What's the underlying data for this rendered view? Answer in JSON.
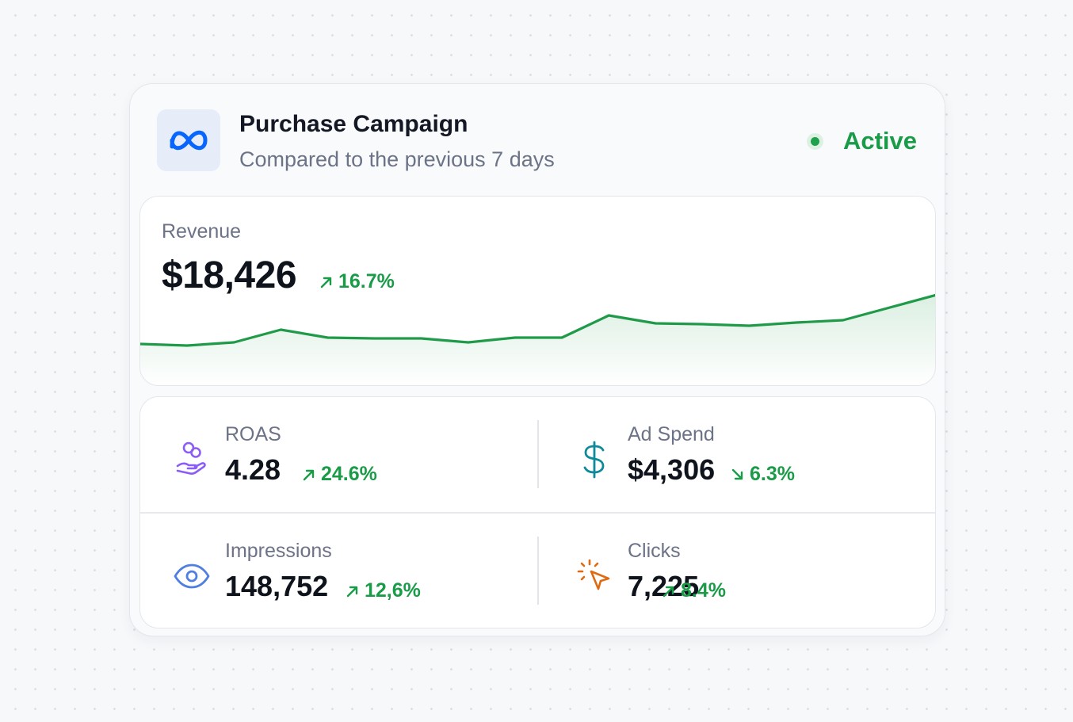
{
  "campaign": {
    "title": "Purchase Campaign",
    "subtitle": "Compared to the previous 7 days",
    "status": "Active",
    "logo_icon": "meta-logo-icon",
    "brand_color": "#0866ff"
  },
  "revenue": {
    "label": "Revenue",
    "value": "$18,426",
    "change": "16.7%",
    "direction": "up"
  },
  "chart_data": {
    "type": "area",
    "title": "",
    "xlabel": "",
    "ylabel": "",
    "values": [
      42,
      41,
      43,
      51,
      46,
      45.5,
      45.5,
      43,
      46,
      46,
      60,
      55,
      54.5,
      53.5,
      55.5,
      57,
      65,
      73
    ],
    "ylim": [
      0,
      100
    ],
    "grid": false,
    "line_color": "#1f9a48"
  },
  "metrics": {
    "roas": {
      "label": "ROAS",
      "value": "4.28",
      "change": "24.6%",
      "direction": "up",
      "icon": "hand-coins-icon",
      "icon_color": "#8b5cf6"
    },
    "ad_spend": {
      "label": "Ad Spend",
      "value": "$4,306",
      "change": "6.3%",
      "direction": "down",
      "icon": "dollar-icon",
      "icon_color": "#0f8a9a"
    },
    "impressions": {
      "label": "Impressions",
      "value": "148,752",
      "change": "12,6%",
      "direction": "up",
      "icon": "eye-icon",
      "icon_color": "#4f7fe0"
    },
    "clicks": {
      "label": "Clicks",
      "value": "7,225",
      "change": "8.4%",
      "direction": "up",
      "icon": "cursor-click-icon",
      "icon_color": "#e06a12"
    }
  },
  "colors": {
    "positive": "#1a9b48",
    "text_primary": "#0f131c",
    "text_secondary": "#6c7387"
  }
}
